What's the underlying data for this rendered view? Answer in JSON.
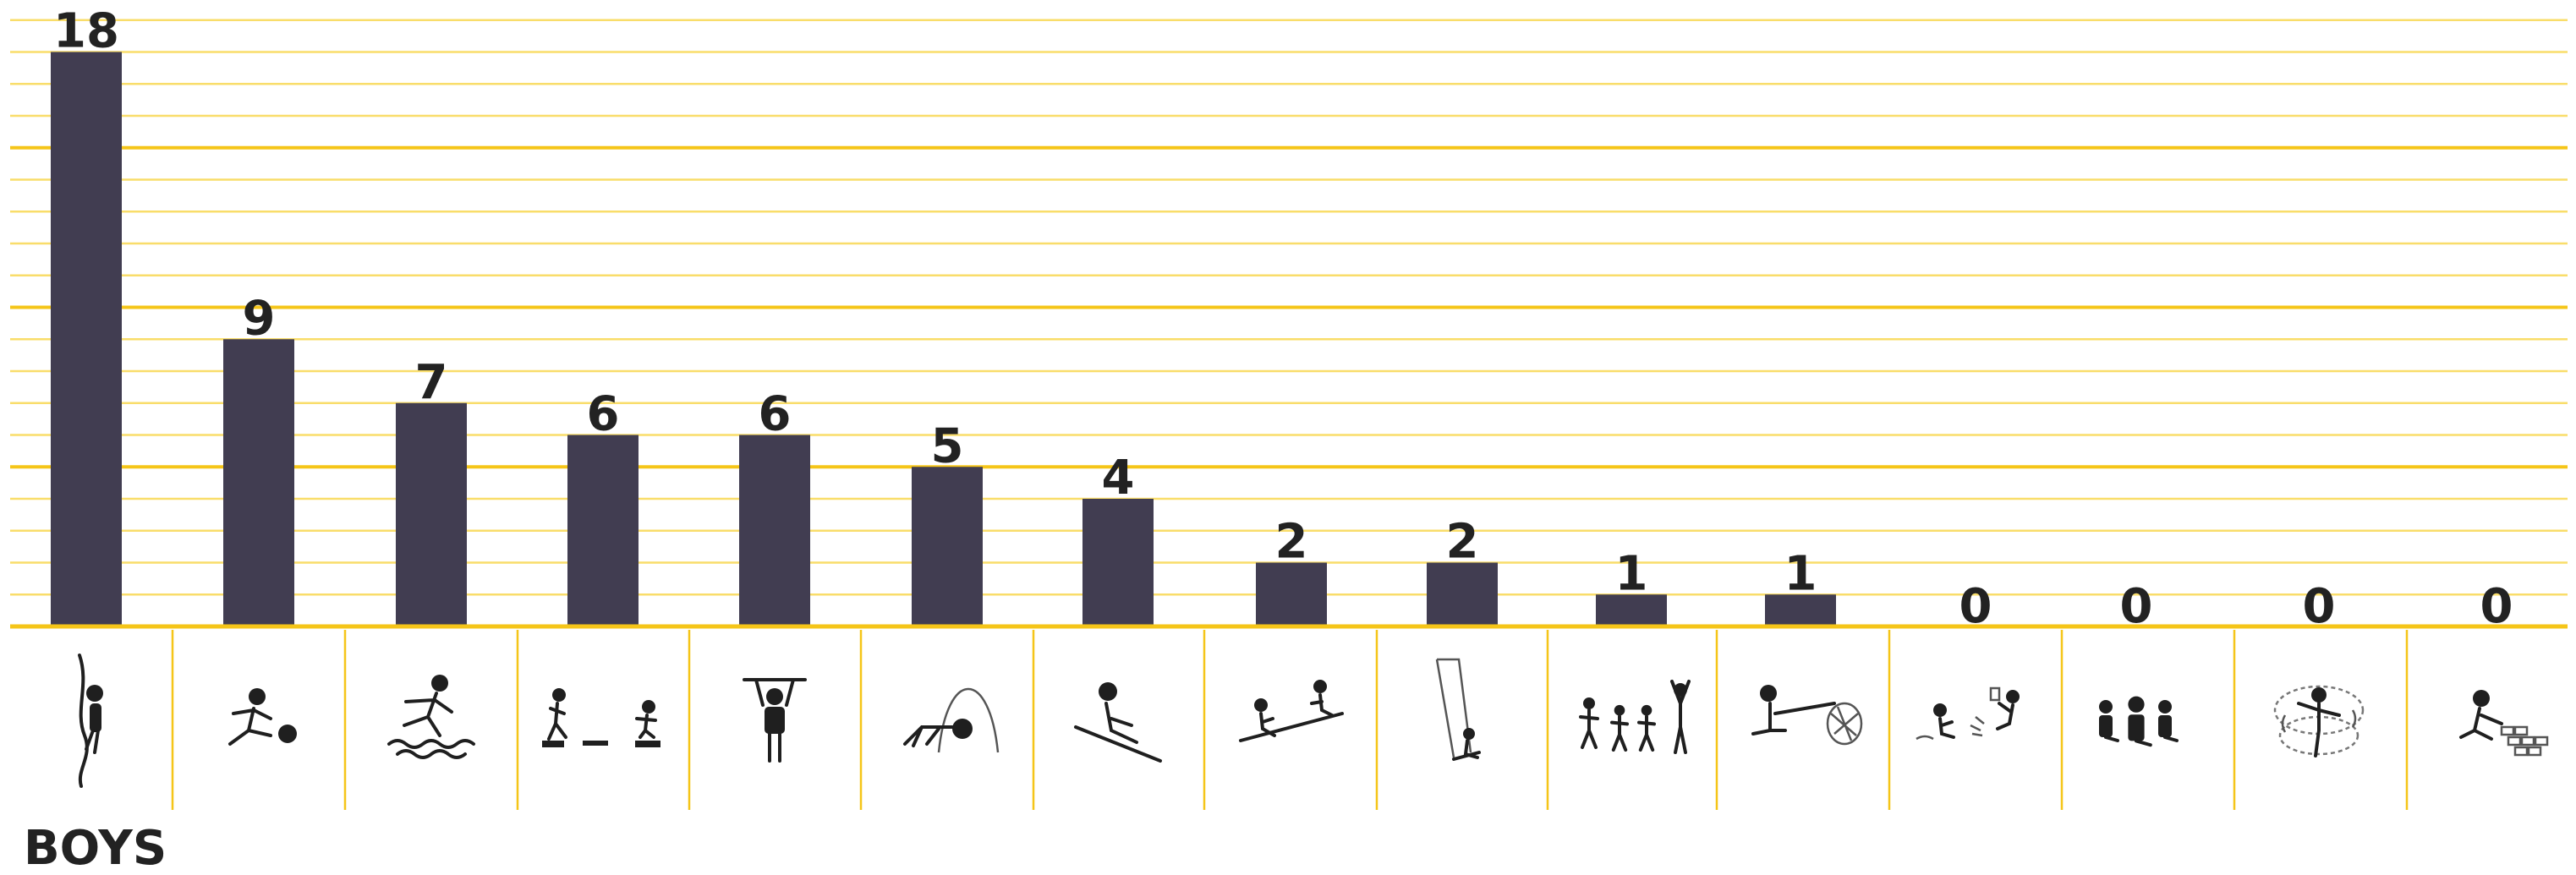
{
  "colors": {
    "bar": "#413d51",
    "grid": "#f5c518",
    "grid_light": "#f9dd6a",
    "text": "#222222"
  },
  "group_title": "BOYS",
  "chart_data": {
    "type": "bar",
    "title": "",
    "xlabel": "",
    "ylabel": "",
    "ylim": [
      0,
      19
    ],
    "grid": true,
    "categories": [
      "rope-climbing-icon",
      "soccer-kick-icon",
      "water-jumping-icon",
      "step-jumping-icon",
      "pull-up-bar-icon",
      "rolling-arc-icon",
      "sliding-slope-icon",
      "seesaw-icon",
      "swing-icon",
      "running-group-icon",
      "net-fishing-icon",
      "splash-play-icon",
      "group-sitting-icon",
      "spinning-icon",
      "block-building-icon"
    ],
    "values": [
      18,
      9,
      7,
      6,
      6,
      5,
      4,
      2,
      2,
      1,
      1,
      0,
      0,
      0,
      0
    ]
  }
}
